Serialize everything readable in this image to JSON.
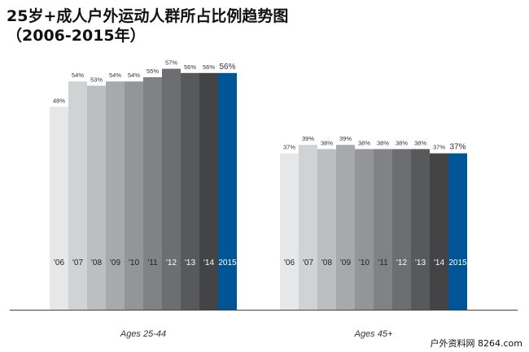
{
  "title_line1": "25岁+成人户外运动人群所占比例趋势图",
  "title_line2": "（2006-2015年）",
  "watermark": "户外资料网 8264.com",
  "chart_data": {
    "type": "bar",
    "groups": [
      {
        "label": "Ages 25-44",
        "categories": [
          "'06",
          "'07",
          "'08",
          "'09",
          "'10",
          "'11",
          "'12",
          "'13",
          "'14",
          "2015"
        ],
        "values": [
          48,
          54,
          53,
          54,
          54,
          55,
          57,
          56,
          56,
          56
        ],
        "value_labels": [
          "48%",
          "54%",
          "53%",
          "54%",
          "54%",
          "55%",
          "57%",
          "56%",
          "56%",
          "56%"
        ]
      },
      {
        "label": "Ages 45+",
        "categories": [
          "'06",
          "'07",
          "'08",
          "'09",
          "'10",
          "'11",
          "'12",
          "'13",
          "'14",
          "2015"
        ],
        "values": [
          37,
          39,
          38,
          39,
          38,
          38,
          38,
          38,
          37,
          37
        ],
        "value_labels": [
          "37%",
          "39%",
          "38%",
          "39%",
          "38%",
          "38%",
          "38%",
          "38%",
          "37%",
          "37%"
        ]
      }
    ],
    "colors": [
      "#e6e7e8",
      "#d1d2d4",
      "#bcbec0",
      "#a7a9ac",
      "#939598",
      "#808285",
      "#6d6e71",
      "#58595b",
      "#444446",
      "#005596"
    ],
    "grid": false,
    "legend": "none"
  }
}
